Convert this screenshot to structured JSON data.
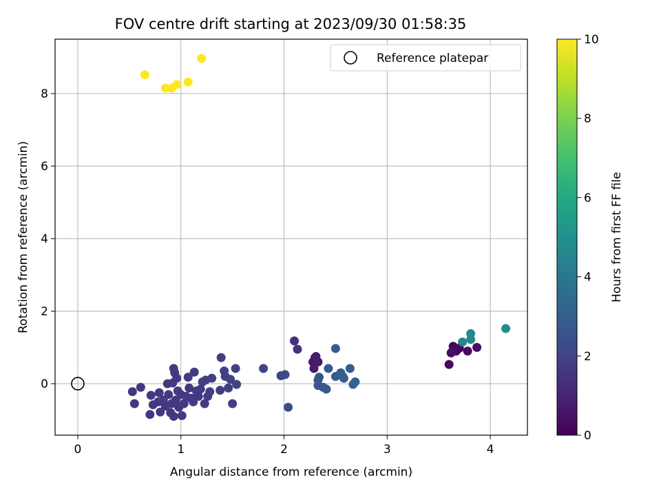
{
  "chart_data": {
    "type": "scatter",
    "title": "FOV centre drift starting at 2023/09/30 01:58:35",
    "xlabel": "Angular distance from reference (arcmin)",
    "ylabel": "Rotation from reference (arcmin)",
    "xlim": [
      -0.22,
      4.36
    ],
    "ylim": [
      -1.42,
      9.5
    ],
    "xticks": [
      0,
      1,
      2,
      3,
      4
    ],
    "yticks": [
      0,
      2,
      4,
      6,
      8
    ],
    "grid": true,
    "legend": {
      "position": "top-right",
      "entries": [
        "Reference platepar"
      ]
    },
    "colorbar": {
      "label": "Hours from first FF file",
      "min": 0,
      "max": 10,
      "ticks": [
        0,
        2,
        4,
        6,
        8,
        10
      ],
      "colormap": "viridis"
    },
    "reference_point": {
      "x": 0,
      "y": 0,
      "label": "Reference platepar"
    },
    "points": [
      {
        "x": 3.62,
        "y": 0.85,
        "c": 0.05
      },
      {
        "x": 3.64,
        "y": 1.03,
        "c": 0.1
      },
      {
        "x": 3.67,
        "y": 0.9,
        "c": 0.15
      },
      {
        "x": 3.7,
        "y": 0.98,
        "c": 0.2
      },
      {
        "x": 3.66,
        "y": 0.95,
        "c": 0.25
      },
      {
        "x": 3.6,
        "y": 0.53,
        "c": 0.3
      },
      {
        "x": 3.78,
        "y": 0.9,
        "c": 0.35
      },
      {
        "x": 3.87,
        "y": 1.0,
        "c": 0.4
      },
      {
        "x": 3.63,
        "y": 0.88,
        "c": 0.45
      },
      {
        "x": 2.3,
        "y": 0.72,
        "c": 0.6
      },
      {
        "x": 2.28,
        "y": 0.6,
        "c": 0.65
      },
      {
        "x": 2.33,
        "y": 0.6,
        "c": 0.7
      },
      {
        "x": 2.29,
        "y": 0.42,
        "c": 0.75
      },
      {
        "x": 2.31,
        "y": 0.75,
        "c": 0.8
      },
      {
        "x": 2.1,
        "y": 1.18,
        "c": 1.45
      },
      {
        "x": 2.13,
        "y": 0.95,
        "c": 1.5
      },
      {
        "x": 0.53,
        "y": -0.22,
        "c": 1.55
      },
      {
        "x": 0.55,
        "y": -0.55,
        "c": 1.6
      },
      {
        "x": 0.61,
        "y": -0.1,
        "c": 1.6
      },
      {
        "x": 0.7,
        "y": -0.85,
        "c": 1.55
      },
      {
        "x": 0.71,
        "y": -0.32,
        "c": 1.65
      },
      {
        "x": 0.73,
        "y": -0.58,
        "c": 1.7
      },
      {
        "x": 0.78,
        "y": -0.5,
        "c": 1.55
      },
      {
        "x": 0.79,
        "y": -0.25,
        "c": 1.6
      },
      {
        "x": 0.8,
        "y": -0.78,
        "c": 1.7
      },
      {
        "x": 0.83,
        "y": -0.45,
        "c": 1.75
      },
      {
        "x": 0.85,
        "y": -0.62,
        "c": 1.6
      },
      {
        "x": 0.87,
        "y": 0.0,
        "c": 1.65
      },
      {
        "x": 0.88,
        "y": -0.3,
        "c": 1.7
      },
      {
        "x": 0.9,
        "y": -0.8,
        "c": 1.55
      },
      {
        "x": 0.91,
        "y": -0.55,
        "c": 1.6
      },
      {
        "x": 0.92,
        "y": 0.02,
        "c": 1.75
      },
      {
        "x": 0.93,
        "y": 0.42,
        "c": 1.7
      },
      {
        "x": 0.94,
        "y": 0.3,
        "c": 1.65
      },
      {
        "x": 0.93,
        "y": -0.9,
        "c": 1.6
      },
      {
        "x": 0.95,
        "y": -0.45,
        "c": 1.65
      },
      {
        "x": 0.96,
        "y": 0.15,
        "c": 1.7
      },
      {
        "x": 0.97,
        "y": -0.2,
        "c": 1.75
      },
      {
        "x": 0.98,
        "y": -0.65,
        "c": 1.6
      },
      {
        "x": 1.0,
        "y": -0.3,
        "c": 1.65
      },
      {
        "x": 1.01,
        "y": -0.88,
        "c": 1.7
      },
      {
        "x": 1.03,
        "y": -0.55,
        "c": 1.65
      },
      {
        "x": 1.05,
        "y": -0.35,
        "c": 1.75
      },
      {
        "x": 1.07,
        "y": 0.18,
        "c": 1.7
      },
      {
        "x": 1.08,
        "y": -0.12,
        "c": 1.6
      },
      {
        "x": 1.1,
        "y": -0.4,
        "c": 1.65
      },
      {
        "x": 1.12,
        "y": -0.5,
        "c": 1.75
      },
      {
        "x": 1.13,
        "y": 0.32,
        "c": 1.7
      },
      {
        "x": 1.15,
        "y": -0.2,
        "c": 1.8
      },
      {
        "x": 1.17,
        "y": -0.35,
        "c": 1.65
      },
      {
        "x": 1.19,
        "y": -0.15,
        "c": 1.75
      },
      {
        "x": 1.21,
        "y": 0.05,
        "c": 1.8
      },
      {
        "x": 1.23,
        "y": -0.55,
        "c": 1.7
      },
      {
        "x": 1.24,
        "y": 0.1,
        "c": 1.85
      },
      {
        "x": 1.26,
        "y": -0.35,
        "c": 1.75
      },
      {
        "x": 1.28,
        "y": -0.22,
        "c": 1.8
      },
      {
        "x": 1.3,
        "y": 0.15,
        "c": 1.85
      },
      {
        "x": 1.38,
        "y": -0.18,
        "c": 1.8
      },
      {
        "x": 1.39,
        "y": 0.72,
        "c": 1.85
      },
      {
        "x": 1.42,
        "y": 0.35,
        "c": 1.9
      },
      {
        "x": 1.43,
        "y": 0.2,
        "c": 1.8
      },
      {
        "x": 1.46,
        "y": -0.12,
        "c": 1.85
      },
      {
        "x": 1.48,
        "y": 0.12,
        "c": 1.9
      },
      {
        "x": 1.5,
        "y": -0.55,
        "c": 1.85
      },
      {
        "x": 1.53,
        "y": 0.42,
        "c": 1.95
      },
      {
        "x": 1.54,
        "y": -0.02,
        "c": 1.9
      },
      {
        "x": 1.8,
        "y": 0.42,
        "c": 2.05
      },
      {
        "x": 1.97,
        "y": 0.22,
        "c": 2.15
      },
      {
        "x": 2.01,
        "y": 0.25,
        "c": 2.2
      },
      {
        "x": 2.04,
        "y": -0.65,
        "c": 2.3
      },
      {
        "x": 2.33,
        "y": 0.1,
        "c": 2.6
      },
      {
        "x": 2.34,
        "y": 0.18,
        "c": 2.65
      },
      {
        "x": 2.33,
        "y": -0.05,
        "c": 2.7
      },
      {
        "x": 2.38,
        "y": -0.1,
        "c": 2.6
      },
      {
        "x": 2.41,
        "y": -0.15,
        "c": 2.75
      },
      {
        "x": 2.43,
        "y": 0.42,
        "c": 2.8
      },
      {
        "x": 2.5,
        "y": 0.2,
        "c": 2.9
      },
      {
        "x": 2.5,
        "y": 0.97,
        "c": 2.85
      },
      {
        "x": 2.55,
        "y": 0.3,
        "c": 2.95
      },
      {
        "x": 2.57,
        "y": 0.2,
        "c": 3.0
      },
      {
        "x": 2.58,
        "y": 0.15,
        "c": 2.95
      },
      {
        "x": 2.64,
        "y": 0.42,
        "c": 3.05
      },
      {
        "x": 2.67,
        "y": -0.02,
        "c": 3.1
      },
      {
        "x": 2.69,
        "y": 0.05,
        "c": 3.15
      },
      {
        "x": 3.73,
        "y": 1.15,
        "c": 4.5
      },
      {
        "x": 3.81,
        "y": 1.22,
        "c": 4.6
      },
      {
        "x": 3.81,
        "y": 1.38,
        "c": 4.7
      },
      {
        "x": 4.15,
        "y": 1.52,
        "c": 4.9
      },
      {
        "x": 0.65,
        "y": 8.52,
        "c": 10
      },
      {
        "x": 0.85,
        "y": 8.15,
        "c": 10
      },
      {
        "x": 0.91,
        "y": 8.15,
        "c": 10
      },
      {
        "x": 0.96,
        "y": 8.25,
        "c": 10
      },
      {
        "x": 1.07,
        "y": 8.32,
        "c": 10
      },
      {
        "x": 1.2,
        "y": 8.97,
        "c": 10
      }
    ]
  }
}
